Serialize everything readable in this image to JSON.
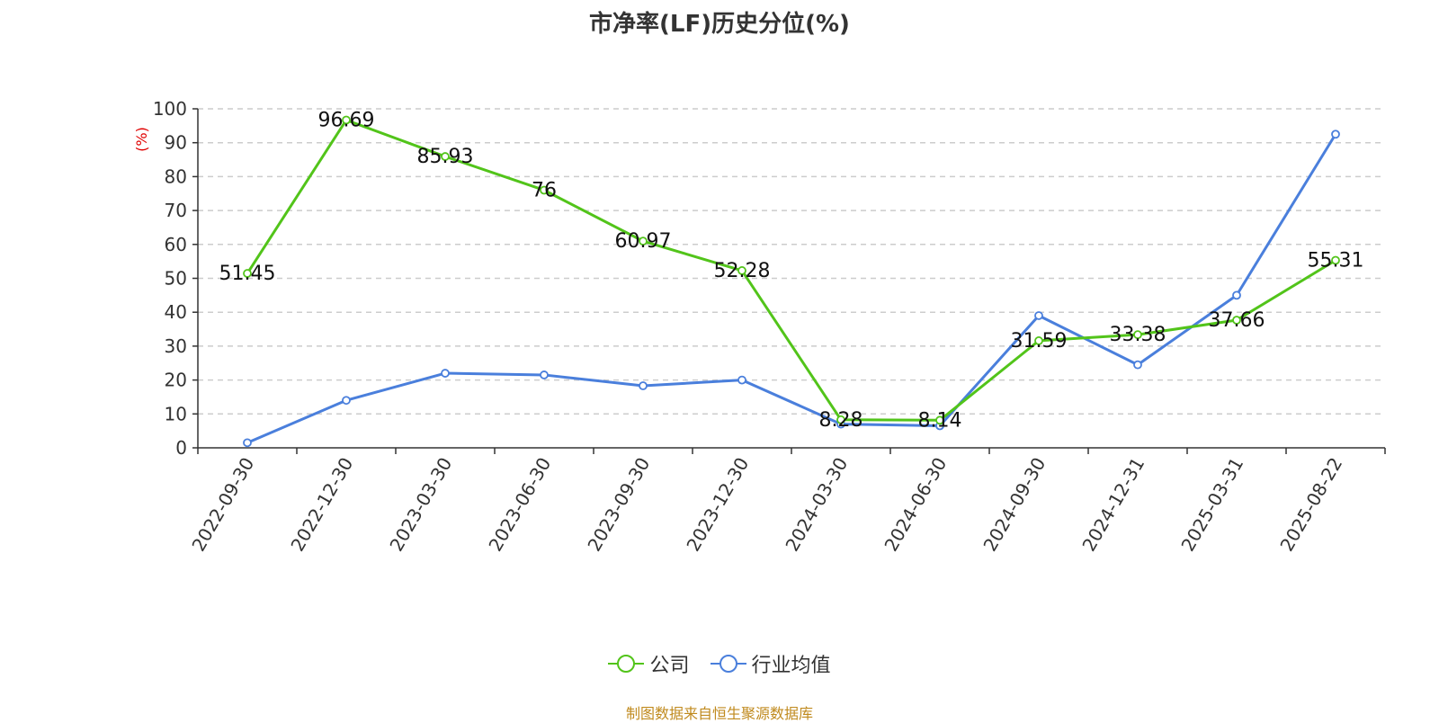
{
  "title": "市净率(LF)历史分位(%)",
  "source_note": "制图数据来自恒生聚源数据库",
  "colors": {
    "company": "#52c41a",
    "industry": "#4a7fdc",
    "axis_unit": "#e00000",
    "source": "#c08a1e"
  },
  "chart_data": {
    "type": "line",
    "title": "市净率(LF)历史分位(%)",
    "ylabel": "(%)",
    "ylim": [
      0,
      100
    ],
    "yticks": [
      0,
      10,
      20,
      30,
      40,
      50,
      60,
      70,
      80,
      90,
      100
    ],
    "grid": true,
    "legend_position": "bottom",
    "categories": [
      "2022-09-30",
      "2022-12-30",
      "2023-03-30",
      "2023-06-30",
      "2023-09-30",
      "2023-12-30",
      "2024-03-30",
      "2024-06-30",
      "2024-09-30",
      "2024-12-31",
      "2025-03-31",
      "2025-08-22"
    ],
    "series": [
      {
        "name": "公司",
        "color": "#52c41a",
        "show_labels": true,
        "values": [
          51.45,
          96.69,
          85.93,
          76,
          60.97,
          52.28,
          8.28,
          8.14,
          31.59,
          33.38,
          37.66,
          55.31
        ],
        "labels": [
          "51.45",
          "96.69",
          "85.93",
          "76",
          "60.97",
          "52.28",
          "8.28",
          "8.14",
          "31.59",
          "33.38",
          "37.66",
          "55.31"
        ]
      },
      {
        "name": "行业均值",
        "color": "#4a7fdc",
        "show_labels": false,
        "values": [
          1.5,
          14,
          22,
          21.5,
          18.3,
          20,
          7,
          6.5,
          39,
          24.5,
          45,
          92.5
        ]
      }
    ]
  }
}
